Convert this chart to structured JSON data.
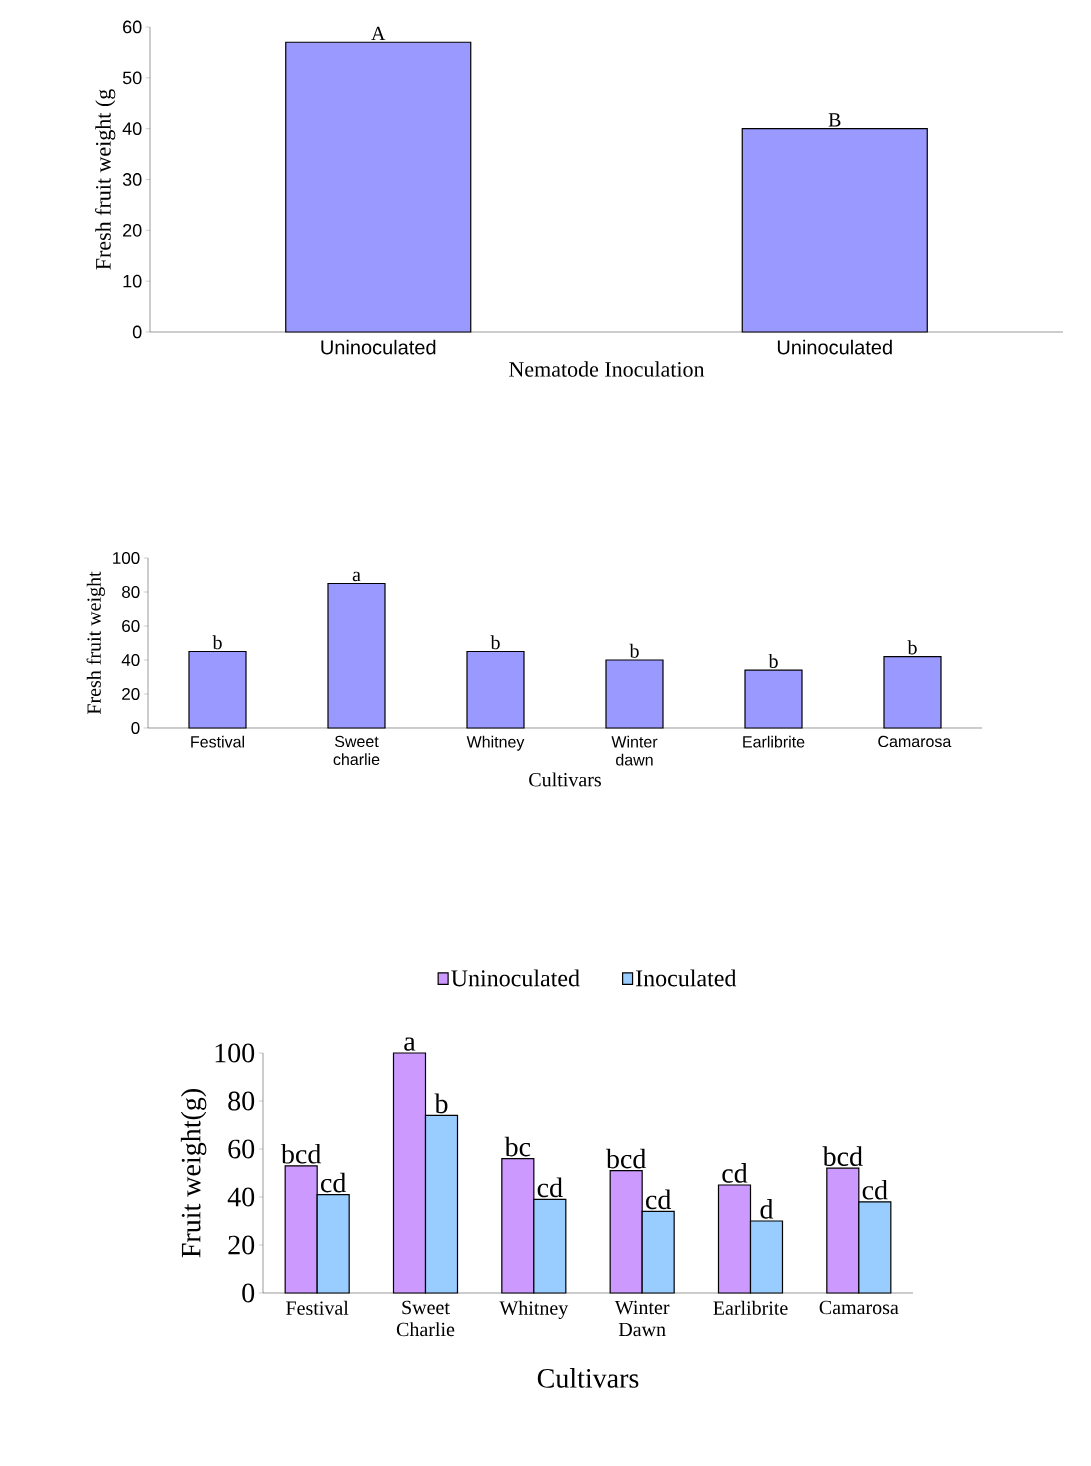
{
  "chart_data": [
    {
      "type": "bar",
      "xlabel": "Nematode Inoculation",
      "ylabel": "Fresh fruit weight (g",
      "categories": [
        "Uninoculated",
        "Uninoculated"
      ],
      "values": [
        57,
        40
      ],
      "color": "#9999ff",
      "ylim": [
        0,
        60
      ],
      "yticks": [
        0,
        10,
        20,
        30,
        40,
        50,
        60
      ],
      "annotations": [
        "A",
        "B"
      ]
    },
    {
      "type": "bar",
      "xlabel": "Cultivars",
      "ylabel": "Fresh fruit weight",
      "categories": [
        "Festival",
        "Sweet charlie",
        "Whitney",
        "Winter dawn",
        "Earlibrite",
        "Camarosa"
      ],
      "values": [
        45,
        85,
        45,
        40,
        34,
        42
      ],
      "color": "#9999ff",
      "ylim": [
        0,
        100
      ],
      "yticks": [
        0,
        20,
        40,
        60,
        80,
        100
      ],
      "annotations": [
        {
          "text": "b",
          "x": "Festival",
          "y": 45
        },
        {
          "text": "a",
          "x": "Sweet charlie",
          "y": 85
        },
        {
          "text": "b",
          "x": "Whitney",
          "y": 45
        },
        {
          "text": "b",
          "x": "Winter dawn",
          "y": 40
        },
        {
          "text": "b",
          "x": "Earlibrite",
          "y": 34
        },
        {
          "text": "b",
          "x": "Camarosa",
          "y": 42
        }
      ]
    },
    {
      "type": "bar",
      "xlabel": "Cultivars",
      "ylabel": "Fruit weight(g)",
      "categories": [
        "Festival",
        "Sweet Charlie",
        "Whitney",
        "Winter Dawn",
        "Earlibrite",
        "Camarosa"
      ],
      "series": [
        {
          "name": "Uninoculated",
          "color": "#cc99ff",
          "values": [
            53,
            100,
            56,
            51,
            45,
            52
          ]
        },
        {
          "name": "Inoculated",
          "color": "#99ccff",
          "values": [
            41,
            74,
            39,
            34,
            30,
            38
          ]
        }
      ],
      "legend": "top",
      "ylim": [
        0,
        100
      ],
      "yticks": [
        0,
        20,
        40,
        60,
        80,
        100
      ],
      "annotations": [
        {
          "text": "bcd",
          "x": "Festival",
          "y": 53
        },
        {
          "text": "cd",
          "x": "Festival",
          "y": 41
        },
        {
          "text": "a",
          "x": "Sweet Charlie",
          "y": 100
        },
        {
          "text": "b",
          "x": "Sweet Charlie",
          "y": 74
        },
        {
          "text": "bc",
          "x": "Whitney",
          "y": 56
        },
        {
          "text": "cd",
          "x": "Whitney",
          "y": 39
        },
        {
          "text": "bcd",
          "x": "Winter Dawn",
          "y": 51
        },
        {
          "text": "cd",
          "x": "Winter Dawn",
          "y": 34
        },
        {
          "text": "cd",
          "x": "Earlibrite",
          "y": 45
        },
        {
          "text": "d",
          "x": "Earlibrite",
          "y": 30
        },
        {
          "text": "bcd",
          "x": "Camarosa",
          "y": 52
        },
        {
          "text": "cd",
          "x": "Camarosa",
          "y": 38
        }
      ]
    }
  ]
}
